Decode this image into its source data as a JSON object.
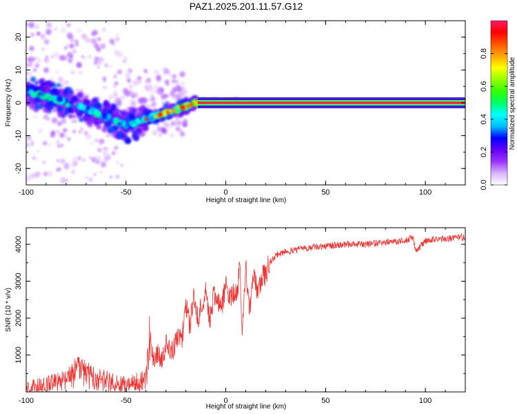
{
  "title": "PAZ1.2025.201.11.57.G12",
  "chart_data": [
    {
      "type": "heatmap",
      "xlabel": "Height of straight line (km)",
      "ylabel": "Frequency (Hz)",
      "xlim": [
        -100,
        120
      ],
      "ylim": [
        -25,
        25
      ],
      "xticks": [
        -100,
        -50,
        0,
        50,
        100
      ],
      "yticks": [
        -20,
        -10,
        0,
        10,
        20
      ],
      "colorbar": {
        "label": "Normalized spectral amplitude",
        "range": [
          0,
          1
        ],
        "ticks": [
          0.0,
          0.2,
          0.4,
          0.6,
          0.8
        ],
        "colors": [
          "#ffffff",
          "#d9b3ff",
          "#9933ff",
          "#6600ff",
          "#0000ff",
          "#00bfff",
          "#00ffff",
          "#00ff66",
          "#33ff00",
          "#99ff00",
          "#ffff00",
          "#ffa500",
          "#ff5500",
          "#ff0000",
          "#ff1a66"
        ]
      },
      "ridge": {
        "x": [
          -100,
          -90,
          -80,
          -70,
          -60,
          -50,
          -45,
          -40,
          -35,
          -30,
          -25,
          -20,
          -15,
          -10,
          0,
          5,
          10,
          15,
          20,
          120
        ],
        "y": [
          3,
          2,
          0,
          -2,
          -4,
          -7,
          -6,
          -5,
          -4,
          -3,
          -2,
          -1,
          0,
          0.5,
          0.8,
          1.0,
          0.5,
          0.2,
          0,
          0
        ]
      }
    },
    {
      "type": "line",
      "xlabel": "Height of straight line (km)",
      "ylabel": "SNR (10 * v/v)",
      "xlim": [
        -100,
        120
      ],
      "ylim": [
        0,
        4450
      ],
      "xticks": [
        -100,
        -50,
        0,
        50,
        100
      ],
      "yticks": [
        1000,
        2000,
        3000,
        4000
      ],
      "color": "#ee3333",
      "series": [
        {
          "x": [
            -100,
            -90,
            -80,
            -75,
            -70,
            -65,
            -60,
            -55,
            -50,
            -45,
            -40,
            -38,
            -36,
            -34,
            -32,
            -30,
            -28,
            -26,
            -24,
            -22,
            -20,
            -18,
            -16,
            -14,
            -12,
            -10,
            -8,
            -6,
            -4,
            -2,
            0,
            2,
            4,
            6,
            7,
            8,
            10,
            12,
            14,
            16,
            18,
            20,
            22,
            25,
            30,
            40,
            50,
            60,
            70,
            80,
            90,
            94,
            95,
            100,
            110,
            118,
            120
          ],
          "y": [
            150,
            200,
            300,
            550,
            500,
            350,
            300,
            250,
            200,
            250,
            300,
            1400,
            900,
            1000,
            800,
            1300,
            1100,
            1200,
            1500,
            1400,
            2400,
            1800,
            2600,
            2000,
            2300,
            2800,
            1900,
            2600,
            2500,
            2300,
            2900,
            2600,
            2700,
            2800,
            3600,
            1500,
            3400,
            2200,
            3300,
            2600,
            3100,
            3200,
            3500,
            3700,
            3800,
            3900,
            3950,
            4000,
            4000,
            4050,
            4100,
            4200,
            3800,
            4100,
            4150,
            4200,
            4150
          ]
        }
      ]
    }
  ]
}
